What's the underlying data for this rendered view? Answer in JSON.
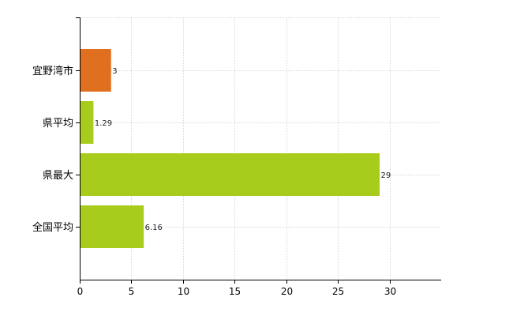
{
  "chart_data": {
    "type": "bar",
    "orientation": "horizontal",
    "categories": [
      "宜野湾市",
      "県平均",
      "県最大",
      "全国平均"
    ],
    "values": [
      3,
      1.29,
      29,
      6.16
    ],
    "value_labels": [
      "3",
      "1.29",
      "29",
      "6.16"
    ],
    "bar_colors": [
      "#e07020",
      "#a8cc1c",
      "#a8cc1c",
      "#a8cc1c"
    ],
    "xlim": [
      0,
      35
    ],
    "x_ticks": [
      0,
      5,
      10,
      15,
      20,
      25,
      30
    ],
    "grid": true,
    "legend": "none",
    "title": "",
    "xlabel": "",
    "ylabel": ""
  }
}
